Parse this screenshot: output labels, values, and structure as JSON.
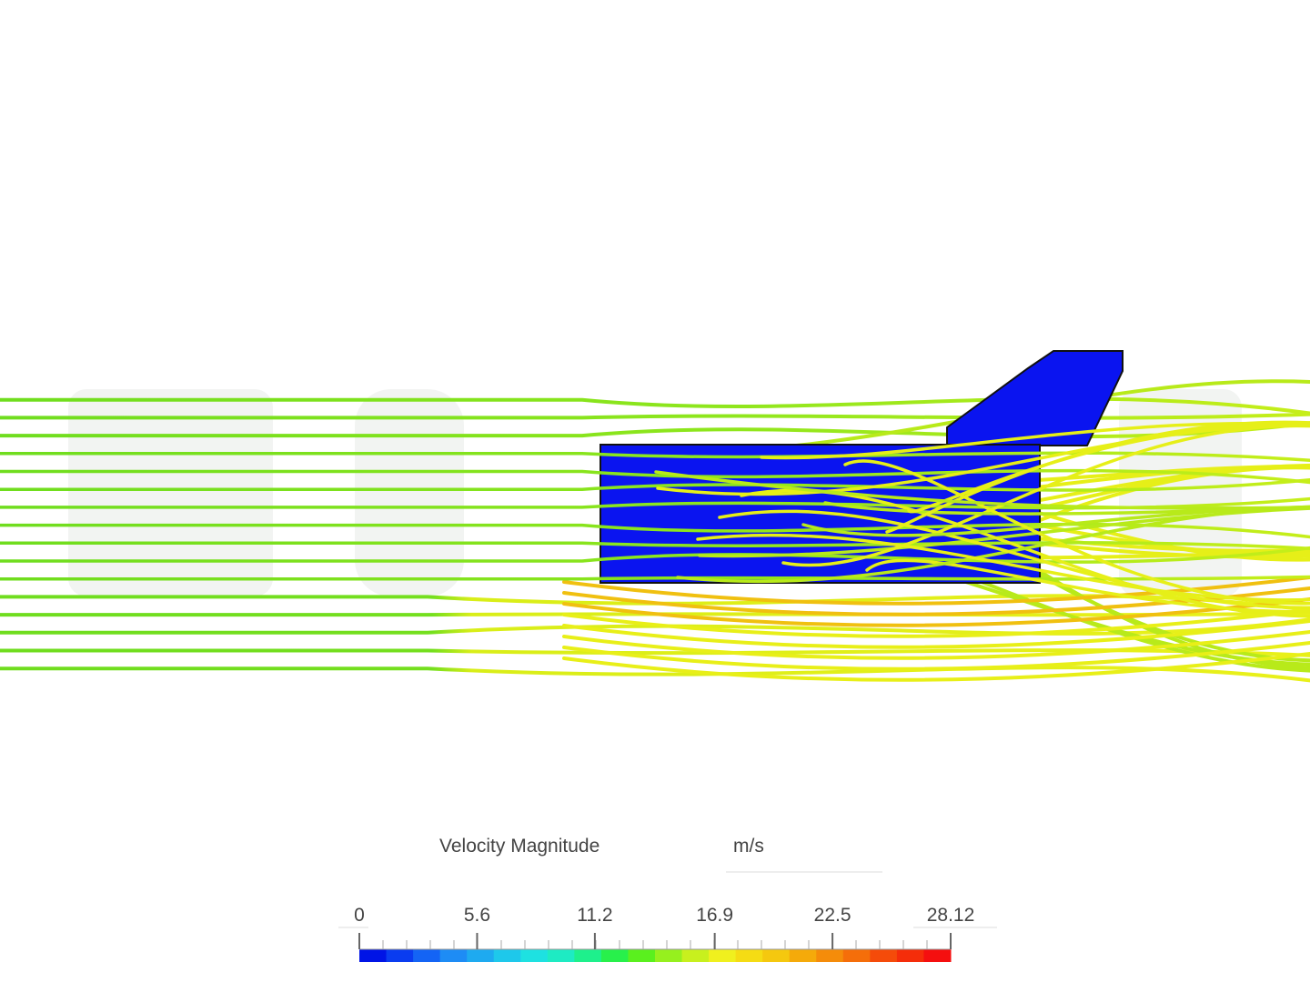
{
  "legend": {
    "title": "Velocity Magnitude",
    "unit": "m/s",
    "range": [
      0,
      28.12
    ],
    "ticks": [
      0,
      5.6,
      11.2,
      16.9,
      22.5,
      28.12
    ]
  }
}
